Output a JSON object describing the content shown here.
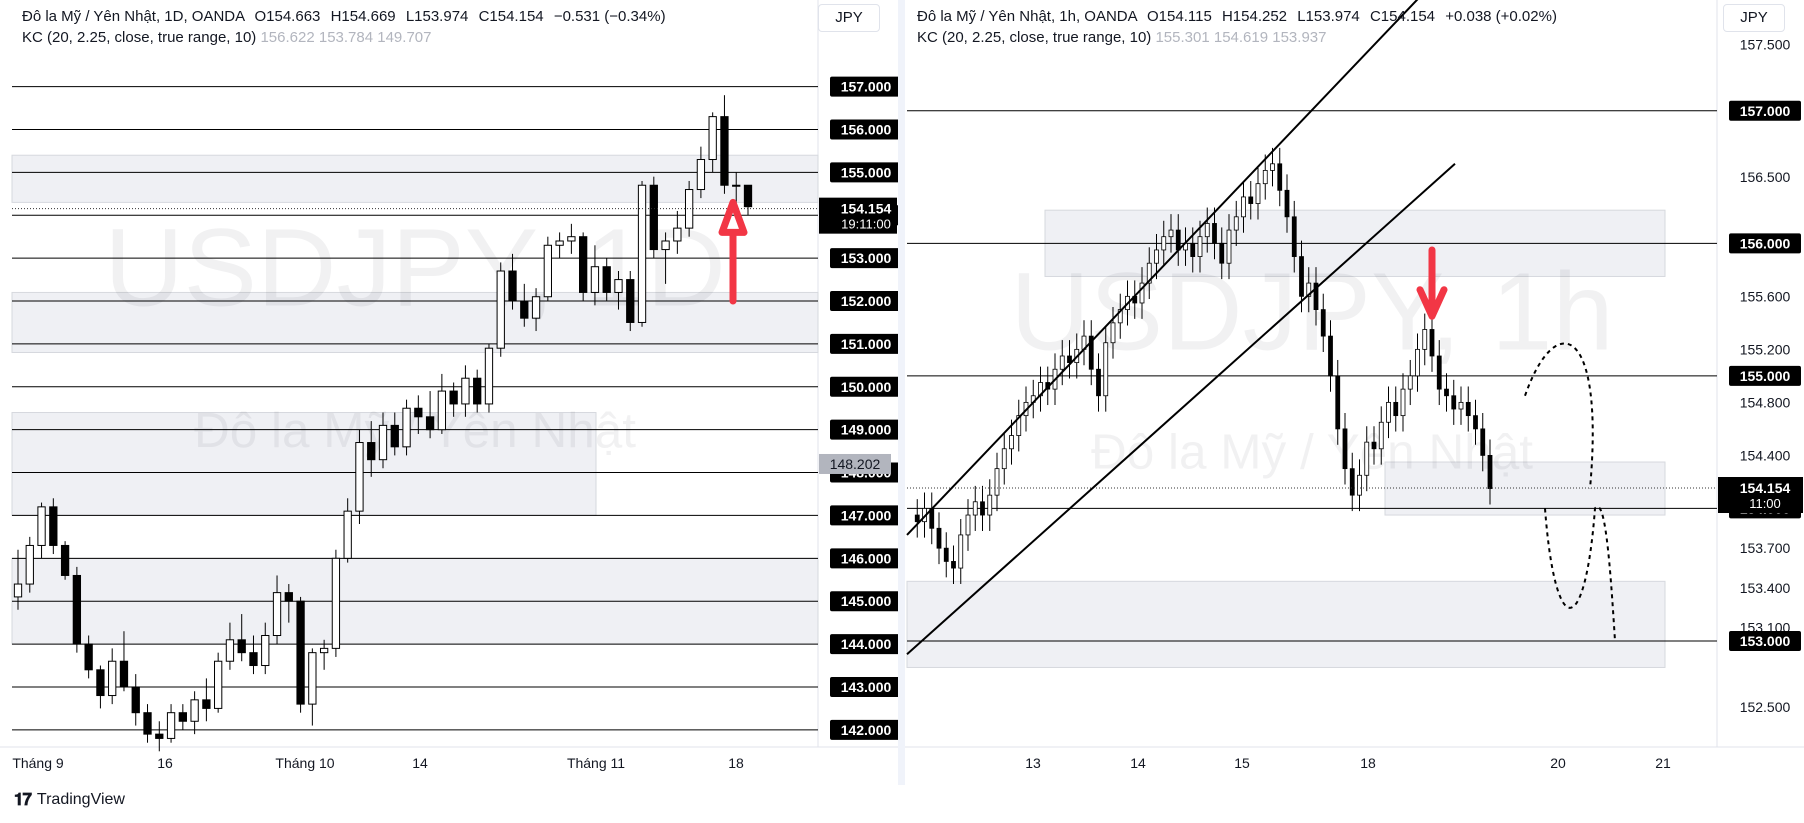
{
  "left": {
    "legend": {
      "symbol": "Đô la Mỹ / Yên Nhật, 1D, OANDA",
      "o_label": "O",
      "o": "154.663",
      "h_label": "H",
      "h": "154.669",
      "l_label": "L",
      "l": "153.974",
      "c_label": "C",
      "c": "154.154",
      "chg": "−0.531 (−0.34%)",
      "kc_label": "KC (20, 2.25, close, true range, 10)",
      "kc_values": "156.622  153.784  149.707"
    },
    "currency_button": "JPY",
    "watermark_main": "USDJPY, 1D",
    "watermark_sub": "Đô la Mỹ / Yên Nhật",
    "price_badge": "154.154",
    "countdown_badge": "19:11:00",
    "crosshair_badge": "148.202"
  },
  "right": {
    "legend": {
      "symbol": "Đô la Mỹ / Yên Nhật, 1h, OANDA",
      "o_label": "O",
      "o": "154.115",
      "h_label": "H",
      "h": "154.252",
      "l_label": "L",
      "l": "153.974",
      "c_label": "C",
      "c": "154.154",
      "chg": "+0.038 (+0.02%)",
      "kc_label": "KC (20, 2.25, close, true range, 10)",
      "kc_values": "155.301  154.619  153.937"
    },
    "currency_button": "JPY",
    "watermark_main": "USDJPY, 1h",
    "watermark_sub": "Đô la Mỹ / Yên Nhật",
    "price_badge": "154.154",
    "countdown_badge": "11:00"
  },
  "footer": {
    "brand": "TradingView"
  },
  "colors": {
    "up": "#ffffff",
    "down": "#000000",
    "arrow": "#f23645",
    "zone": "#e9ebf0",
    "badge": "#000000"
  },
  "chart_data": [
    {
      "type": "candlestick",
      "title": "Đô la Mỹ / Yên Nhật, 1D, OANDA",
      "ylim": [
        141.6,
        158.6
      ],
      "x_tick_labels": [
        "Tháng 9",
        "16",
        "Tháng 10",
        "14",
        "Tháng 11",
        "18"
      ],
      "y_tick_labels": [
        "157.000",
        "156.000",
        "155.000",
        "154.000",
        "153.000",
        "152.000",
        "151.000",
        "150.000",
        "149.000",
        "148.000",
        "147.000",
        "146.000",
        "145.000",
        "144.000",
        "143.000",
        "142.000"
      ],
      "horizontal_levels": [
        157,
        156,
        155,
        154,
        153,
        152,
        151,
        150,
        149,
        148,
        147,
        146,
        145,
        144,
        143,
        142
      ],
      "zones": [
        [
          154.3,
          155.4
        ],
        [
          150.8,
          152.2
        ],
        [
          147.0,
          149.4
        ],
        [
          144.0,
          146.0
        ]
      ],
      "candles": [
        [
          145.1,
          146.2,
          144.8,
          145.4
        ],
        [
          145.4,
          146.5,
          145.2,
          146.3
        ],
        [
          146.3,
          147.3,
          146.0,
          147.2
        ],
        [
          147.2,
          147.4,
          146.1,
          146.3
        ],
        [
          146.3,
          146.4,
          145.5,
          145.6
        ],
        [
          145.6,
          145.8,
          143.8,
          144.0
        ],
        [
          144.0,
          144.2,
          143.2,
          143.4
        ],
        [
          143.4,
          143.5,
          142.5,
          142.8
        ],
        [
          142.8,
          143.9,
          142.6,
          143.6
        ],
        [
          143.6,
          144.3,
          142.9,
          143.0
        ],
        [
          143.0,
          143.3,
          142.1,
          142.4
        ],
        [
          142.4,
          142.6,
          141.7,
          141.9
        ],
        [
          141.9,
          142.2,
          141.5,
          141.8
        ],
        [
          141.8,
          142.6,
          141.7,
          142.4
        ],
        [
          142.4,
          142.6,
          142.0,
          142.2
        ],
        [
          142.2,
          142.9,
          141.9,
          142.7
        ],
        [
          142.7,
          143.2,
          142.2,
          142.5
        ],
        [
          142.5,
          143.8,
          142.4,
          143.6
        ],
        [
          143.6,
          144.5,
          143.4,
          144.1
        ],
        [
          144.1,
          144.7,
          143.6,
          143.8
        ],
        [
          143.8,
          144.2,
          143.3,
          143.5
        ],
        [
          143.5,
          144.5,
          143.3,
          144.2
        ],
        [
          144.2,
          145.6,
          144.0,
          145.2
        ],
        [
          145.2,
          145.4,
          144.5,
          145.0
        ],
        [
          145.0,
          145.1,
          142.4,
          142.6
        ],
        [
          142.6,
          143.9,
          142.1,
          143.8
        ],
        [
          143.8,
          144.1,
          143.4,
          143.9
        ],
        [
          143.9,
          146.2,
          143.7,
          146.0
        ],
        [
          146.0,
          147.4,
          145.9,
          147.1
        ],
        [
          147.1,
          149.0,
          146.8,
          148.7
        ],
        [
          148.7,
          149.2,
          147.9,
          148.3
        ],
        [
          148.3,
          149.4,
          148.1,
          149.1
        ],
        [
          149.1,
          149.4,
          148.4,
          148.6
        ],
        [
          148.6,
          149.7,
          148.4,
          149.5
        ],
        [
          149.5,
          149.8,
          148.9,
          149.3
        ],
        [
          149.3,
          149.9,
          148.8,
          149.0
        ],
        [
          149.0,
          150.3,
          148.9,
          149.9
        ],
        [
          149.9,
          150.1,
          149.3,
          149.6
        ],
        [
          149.6,
          150.5,
          149.3,
          150.2
        ],
        [
          150.2,
          150.4,
          149.4,
          149.6
        ],
        [
          149.6,
          151.0,
          149.4,
          150.9
        ],
        [
          150.9,
          152.9,
          150.7,
          152.7
        ],
        [
          152.7,
          153.1,
          151.8,
          152.0
        ],
        [
          152.0,
          152.4,
          151.4,
          151.6
        ],
        [
          151.6,
          152.3,
          151.3,
          152.1
        ],
        [
          152.1,
          153.5,
          152.0,
          153.3
        ],
        [
          153.3,
          153.6,
          153.0,
          153.4
        ],
        [
          153.4,
          153.8,
          153.1,
          153.5
        ],
        [
          153.5,
          153.6,
          152.0,
          152.2
        ],
        [
          152.2,
          153.3,
          151.9,
          152.8
        ],
        [
          152.8,
          153.0,
          152.0,
          152.2
        ],
        [
          152.2,
          152.7,
          151.8,
          152.5
        ],
        [
          152.5,
          152.7,
          151.3,
          151.5
        ],
        [
          151.5,
          154.8,
          151.4,
          154.7
        ],
        [
          154.7,
          154.9,
          153.0,
          153.2
        ],
        [
          153.2,
          153.6,
          152.4,
          153.4
        ],
        [
          153.4,
          154.1,
          153.1,
          153.7
        ],
        [
          153.7,
          154.8,
          153.5,
          154.6
        ],
        [
          154.6,
          155.6,
          154.4,
          155.3
        ],
        [
          155.3,
          156.4,
          155.0,
          156.3
        ],
        [
          156.3,
          156.8,
          154.5,
          154.7
        ],
        [
          154.7,
          155.0,
          154.2,
          154.7
        ],
        [
          154.7,
          154.7,
          154.0,
          154.2
        ]
      ]
    },
    {
      "type": "candlestick",
      "title": "Đô la Mỹ / Yên Nhật, 1h, OANDA",
      "ylim": [
        152.2,
        157.7
      ],
      "x_tick_labels": [
        "13",
        "14",
        "15",
        "18",
        "20",
        "21"
      ],
      "y_tick_labels": [
        "157.500",
        "157.000",
        "156.500",
        "156.000",
        "155.600",
        "155.200",
        "155.000",
        "154.800",
        "154.400",
        "154.000",
        "153.700",
        "153.400",
        "153.100",
        "153.000",
        "152.500"
      ],
      "horizontal_levels": [
        157.0,
        156.0,
        155.0,
        154.0,
        153.0
      ],
      "zones": [
        [
          155.75,
          156.25
        ],
        [
          153.95,
          154.35
        ],
        [
          152.8,
          153.45
        ]
      ],
      "series": [
        {
          "values": [
            153.95,
            153.9,
            154.0,
            153.85,
            153.7,
            153.6,
            153.55,
            153.8,
            153.95,
            154.05,
            153.95,
            154.1,
            154.3,
            154.45,
            154.55,
            154.7,
            154.8,
            154.85,
            154.95,
            154.9,
            155.05,
            155.15,
            155.1,
            155.2,
            155.3,
            155.05,
            154.85,
            155.25,
            155.4,
            155.5,
            155.6,
            155.55,
            155.7,
            155.85,
            155.95,
            156.05,
            156.1,
            155.95,
            156.0,
            155.9,
            156.05,
            156.15,
            156.0,
            155.85,
            156.1,
            156.2,
            156.35,
            156.3,
            156.45,
            156.55,
            156.6,
            156.4,
            156.2,
            155.9,
            155.6,
            155.7,
            155.5,
            155.3,
            155.0,
            154.6,
            154.3,
            154.1,
            154.25,
            154.5,
            154.45,
            154.65,
            154.8,
            154.7,
            154.9,
            155.0,
            155.2,
            155.35,
            155.15,
            154.9,
            154.85,
            154.75,
            154.8,
            154.7,
            154.6,
            154.4,
            154.15
          ]
        }
      ]
    }
  ]
}
